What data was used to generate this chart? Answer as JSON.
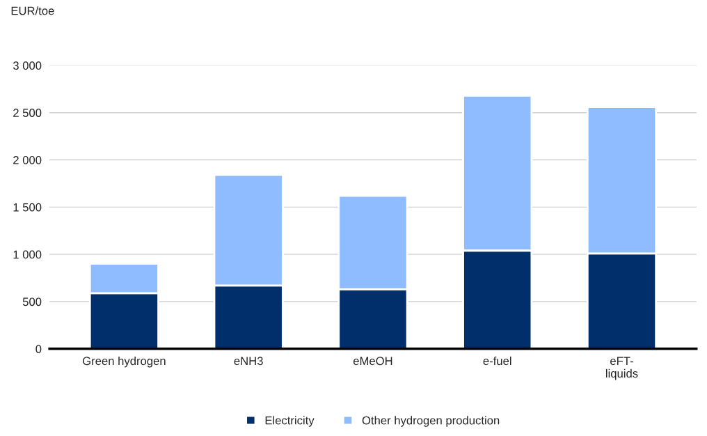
{
  "chart_data": {
    "type": "bar",
    "stacked": true,
    "ylabel": "EUR/toe",
    "categories": [
      "Green hydrogen",
      "eNH3",
      "eMeOH",
      "e-fuel",
      "eFT-\nliquids"
    ],
    "series": [
      {
        "name": "Electricity",
        "color": "#002f6c",
        "values": [
          590,
          670,
          630,
          1040,
          1010
        ]
      },
      {
        "name": "Other hydrogen production",
        "color": "#8fbcff",
        "values": [
          310,
          1170,
          990,
          1640,
          1550
        ]
      }
    ],
    "ylim": [
      0,
      3000
    ],
    "yticks": [
      {
        "value": 0,
        "label": "0"
      },
      {
        "value": 500,
        "label": "500"
      },
      {
        "value": 1000,
        "label": "1 000"
      },
      {
        "value": 1500,
        "label": "1 500"
      },
      {
        "value": 2000,
        "label": "2 000"
      },
      {
        "value": 2500,
        "label": "2 500"
      },
      {
        "value": 3000,
        "label": "3 000"
      }
    ],
    "grid": "y",
    "legend": "bottom"
  }
}
